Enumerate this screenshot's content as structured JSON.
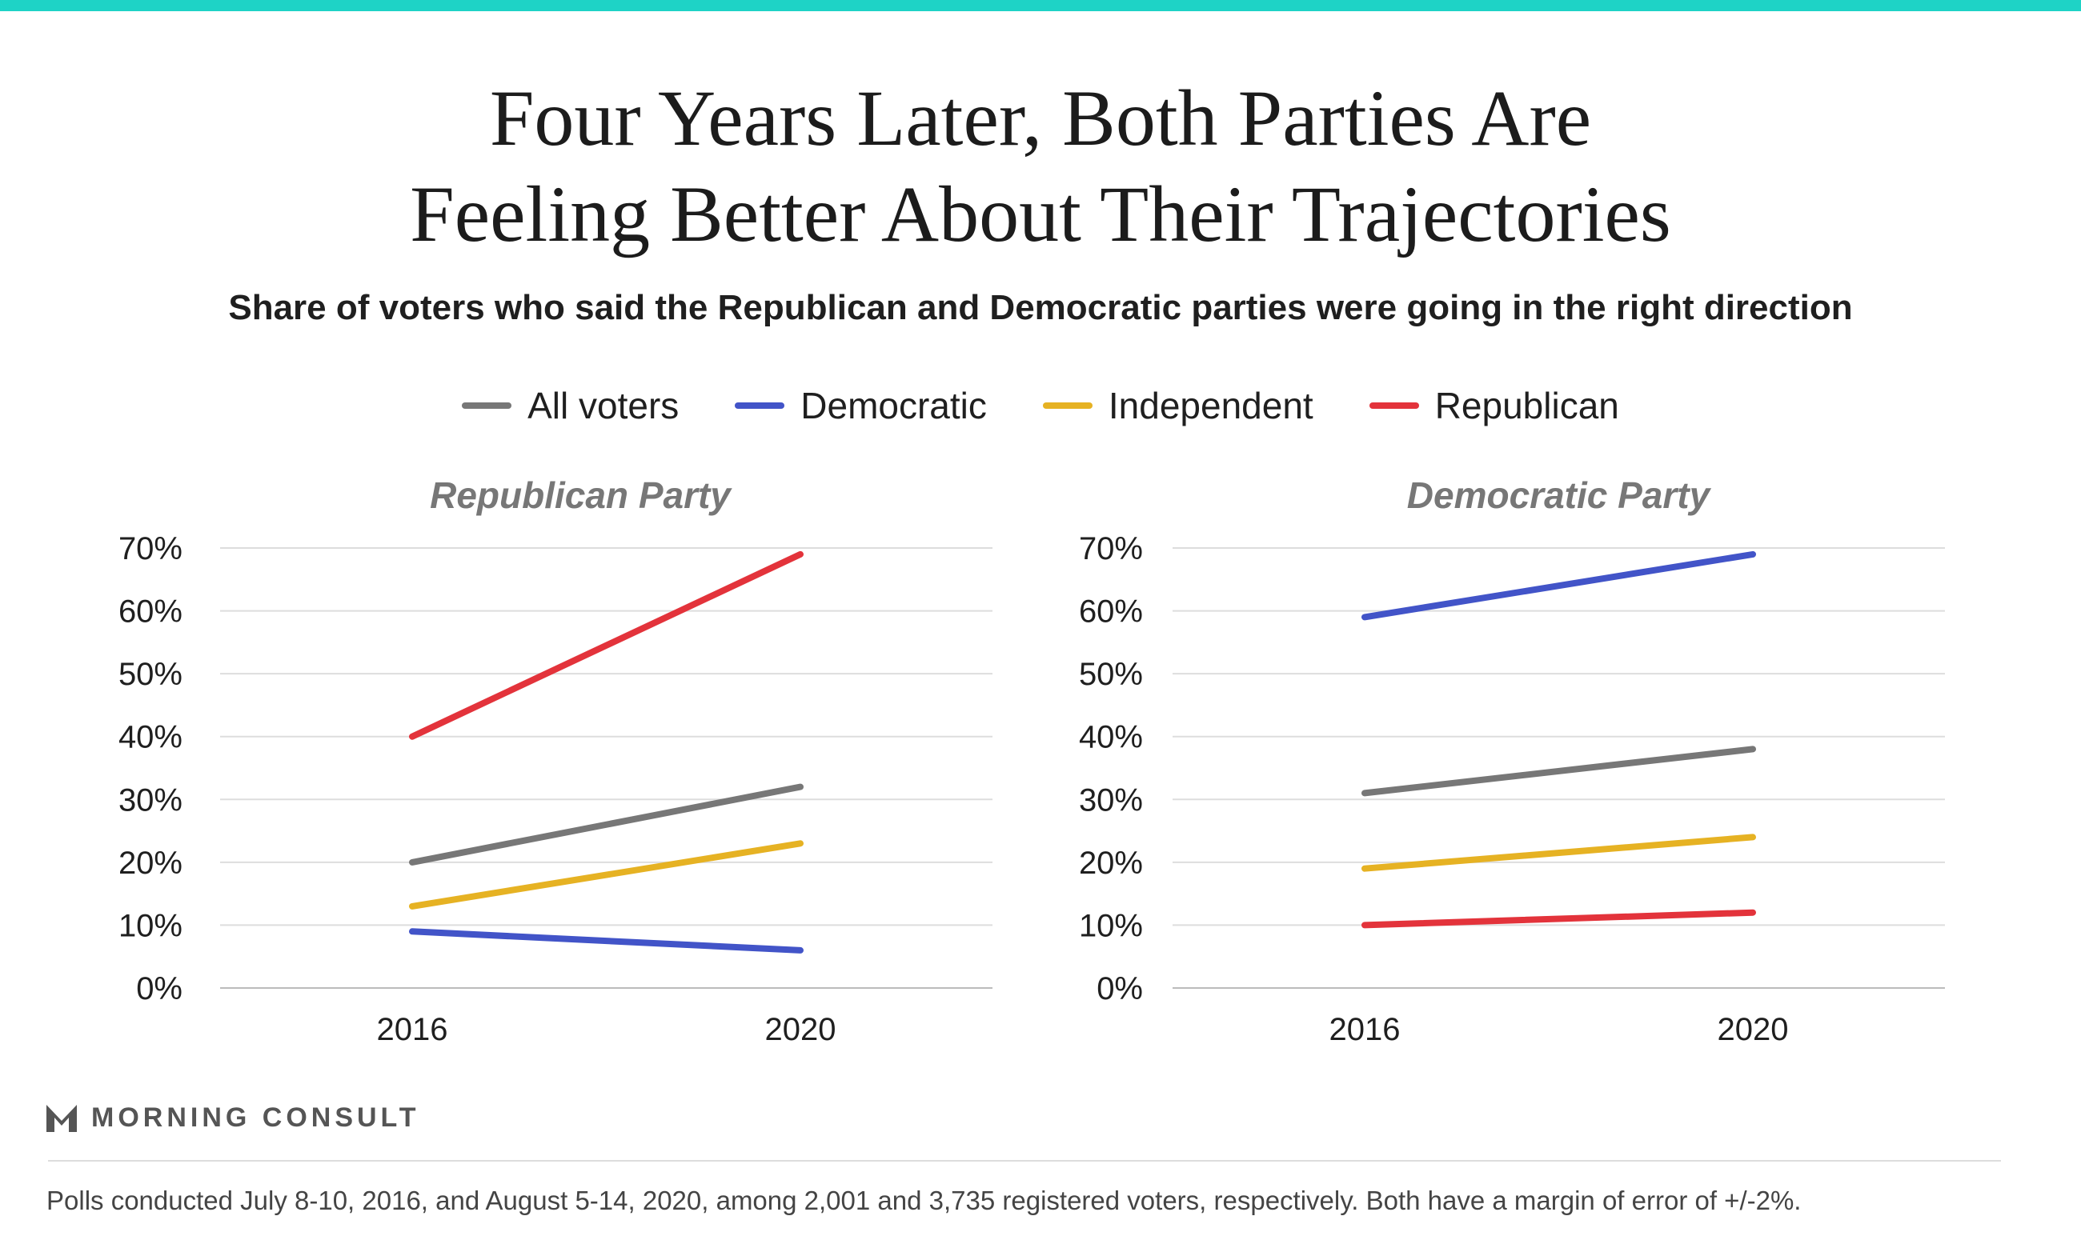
{
  "title_line1": "Four Years Later, Both Parties Are",
  "title_line2": "Feeling Better About Their Trajectories",
  "subtitle": "Share of voters who said the Republican and Democratic parties were going in the right direction",
  "legend": [
    {
      "label": "All voters",
      "color": "#777777"
    },
    {
      "label": "Democratic",
      "color": "#4254c8"
    },
    {
      "label": "Independent",
      "color": "#e6b223"
    },
    {
      "label": "Republican",
      "color": "#e3333b"
    }
  ],
  "brand": "MORNING CONSULT",
  "footnote": "Polls conducted July 8-10, 2016, and August 5-14, 2020, among 2,001 and 3,735 registered voters, respectively. Both have a margin of error of +/-2%.",
  "chart_data": [
    {
      "type": "line",
      "title": "Republican Party",
      "x": [
        "2016",
        "2020"
      ],
      "ylim": [
        0,
        70
      ],
      "yticks": [
        0,
        10,
        20,
        30,
        40,
        50,
        60,
        70
      ],
      "ytick_labels": [
        "0%",
        "10%",
        "20%",
        "30%",
        "40%",
        "50%",
        "60%",
        "70%"
      ],
      "grid": true,
      "series": [
        {
          "name": "All voters",
          "color": "#777777",
          "values": [
            20,
            32
          ]
        },
        {
          "name": "Democratic",
          "color": "#4254c8",
          "values": [
            9,
            6
          ]
        },
        {
          "name": "Independent",
          "color": "#e6b223",
          "values": [
            13,
            23
          ]
        },
        {
          "name": "Republican",
          "color": "#e3333b",
          "values": [
            40,
            69
          ]
        }
      ]
    },
    {
      "type": "line",
      "title": "Democratic Party",
      "x": [
        "2016",
        "2020"
      ],
      "ylim": [
        0,
        70
      ],
      "yticks": [
        0,
        10,
        20,
        30,
        40,
        50,
        60,
        70
      ],
      "ytick_labels": [
        "0%",
        "10%",
        "20%",
        "30%",
        "40%",
        "50%",
        "60%",
        "70%"
      ],
      "grid": true,
      "series": [
        {
          "name": "All voters",
          "color": "#777777",
          "values": [
            31,
            38
          ]
        },
        {
          "name": "Democratic",
          "color": "#4254c8",
          "values": [
            59,
            69
          ]
        },
        {
          "name": "Independent",
          "color": "#e6b223",
          "values": [
            19,
            24
          ]
        },
        {
          "name": "Republican",
          "color": "#e3333b",
          "values": [
            10,
            12
          ]
        }
      ]
    }
  ]
}
